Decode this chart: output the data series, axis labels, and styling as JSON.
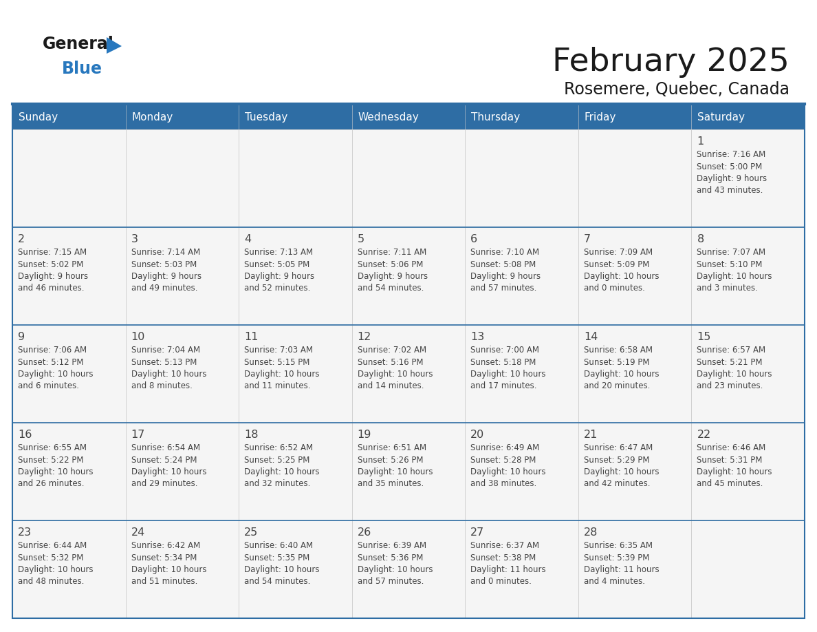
{
  "title": "February 2025",
  "subtitle": "Rosemere, Quebec, Canada",
  "days_of_week": [
    "Sunday",
    "Monday",
    "Tuesday",
    "Wednesday",
    "Thursday",
    "Friday",
    "Saturday"
  ],
  "header_bg": "#2E6DA4",
  "header_text": "#FFFFFF",
  "cell_bg": "#F5F5F5",
  "border_color": "#2E6DA4",
  "text_color": "#444444",
  "title_color": "#1a1a1a",
  "logo_black": "#1a1a1a",
  "logo_blue": "#2878BE",
  "calendar_data": [
    [
      null,
      null,
      null,
      null,
      null,
      null,
      {
        "day": "1",
        "sunrise": "7:16 AM",
        "sunset": "5:00 PM",
        "daylight": "9 hours\nand 43 minutes."
      }
    ],
    [
      {
        "day": "2",
        "sunrise": "7:15 AM",
        "sunset": "5:02 PM",
        "daylight": "9 hours\nand 46 minutes."
      },
      {
        "day": "3",
        "sunrise": "7:14 AM",
        "sunset": "5:03 PM",
        "daylight": "9 hours\nand 49 minutes."
      },
      {
        "day": "4",
        "sunrise": "7:13 AM",
        "sunset": "5:05 PM",
        "daylight": "9 hours\nand 52 minutes."
      },
      {
        "day": "5",
        "sunrise": "7:11 AM",
        "sunset": "5:06 PM",
        "daylight": "9 hours\nand 54 minutes."
      },
      {
        "day": "6",
        "sunrise": "7:10 AM",
        "sunset": "5:08 PM",
        "daylight": "9 hours\nand 57 minutes."
      },
      {
        "day": "7",
        "sunrise": "7:09 AM",
        "sunset": "5:09 PM",
        "daylight": "10 hours\nand 0 minutes."
      },
      {
        "day": "8",
        "sunrise": "7:07 AM",
        "sunset": "5:10 PM",
        "daylight": "10 hours\nand 3 minutes."
      }
    ],
    [
      {
        "day": "9",
        "sunrise": "7:06 AM",
        "sunset": "5:12 PM",
        "daylight": "10 hours\nand 6 minutes."
      },
      {
        "day": "10",
        "sunrise": "7:04 AM",
        "sunset": "5:13 PM",
        "daylight": "10 hours\nand 8 minutes."
      },
      {
        "day": "11",
        "sunrise": "7:03 AM",
        "sunset": "5:15 PM",
        "daylight": "10 hours\nand 11 minutes."
      },
      {
        "day": "12",
        "sunrise": "7:02 AM",
        "sunset": "5:16 PM",
        "daylight": "10 hours\nand 14 minutes."
      },
      {
        "day": "13",
        "sunrise": "7:00 AM",
        "sunset": "5:18 PM",
        "daylight": "10 hours\nand 17 minutes."
      },
      {
        "day": "14",
        "sunrise": "6:58 AM",
        "sunset": "5:19 PM",
        "daylight": "10 hours\nand 20 minutes."
      },
      {
        "day": "15",
        "sunrise": "6:57 AM",
        "sunset": "5:21 PM",
        "daylight": "10 hours\nand 23 minutes."
      }
    ],
    [
      {
        "day": "16",
        "sunrise": "6:55 AM",
        "sunset": "5:22 PM",
        "daylight": "10 hours\nand 26 minutes."
      },
      {
        "day": "17",
        "sunrise": "6:54 AM",
        "sunset": "5:24 PM",
        "daylight": "10 hours\nand 29 minutes."
      },
      {
        "day": "18",
        "sunrise": "6:52 AM",
        "sunset": "5:25 PM",
        "daylight": "10 hours\nand 32 minutes."
      },
      {
        "day": "19",
        "sunrise": "6:51 AM",
        "sunset": "5:26 PM",
        "daylight": "10 hours\nand 35 minutes."
      },
      {
        "day": "20",
        "sunrise": "6:49 AM",
        "sunset": "5:28 PM",
        "daylight": "10 hours\nand 38 minutes."
      },
      {
        "day": "21",
        "sunrise": "6:47 AM",
        "sunset": "5:29 PM",
        "daylight": "10 hours\nand 42 minutes."
      },
      {
        "day": "22",
        "sunrise": "6:46 AM",
        "sunset": "5:31 PM",
        "daylight": "10 hours\nand 45 minutes."
      }
    ],
    [
      {
        "day": "23",
        "sunrise": "6:44 AM",
        "sunset": "5:32 PM",
        "daylight": "10 hours\nand 48 minutes."
      },
      {
        "day": "24",
        "sunrise": "6:42 AM",
        "sunset": "5:34 PM",
        "daylight": "10 hours\nand 51 minutes."
      },
      {
        "day": "25",
        "sunrise": "6:40 AM",
        "sunset": "5:35 PM",
        "daylight": "10 hours\nand 54 minutes."
      },
      {
        "day": "26",
        "sunrise": "6:39 AM",
        "sunset": "5:36 PM",
        "daylight": "10 hours\nand 57 minutes."
      },
      {
        "day": "27",
        "sunrise": "6:37 AM",
        "sunset": "5:38 PM",
        "daylight": "11 hours\nand 0 minutes."
      },
      {
        "day": "28",
        "sunrise": "6:35 AM",
        "sunset": "5:39 PM",
        "daylight": "11 hours\nand 4 minutes."
      },
      null
    ]
  ]
}
